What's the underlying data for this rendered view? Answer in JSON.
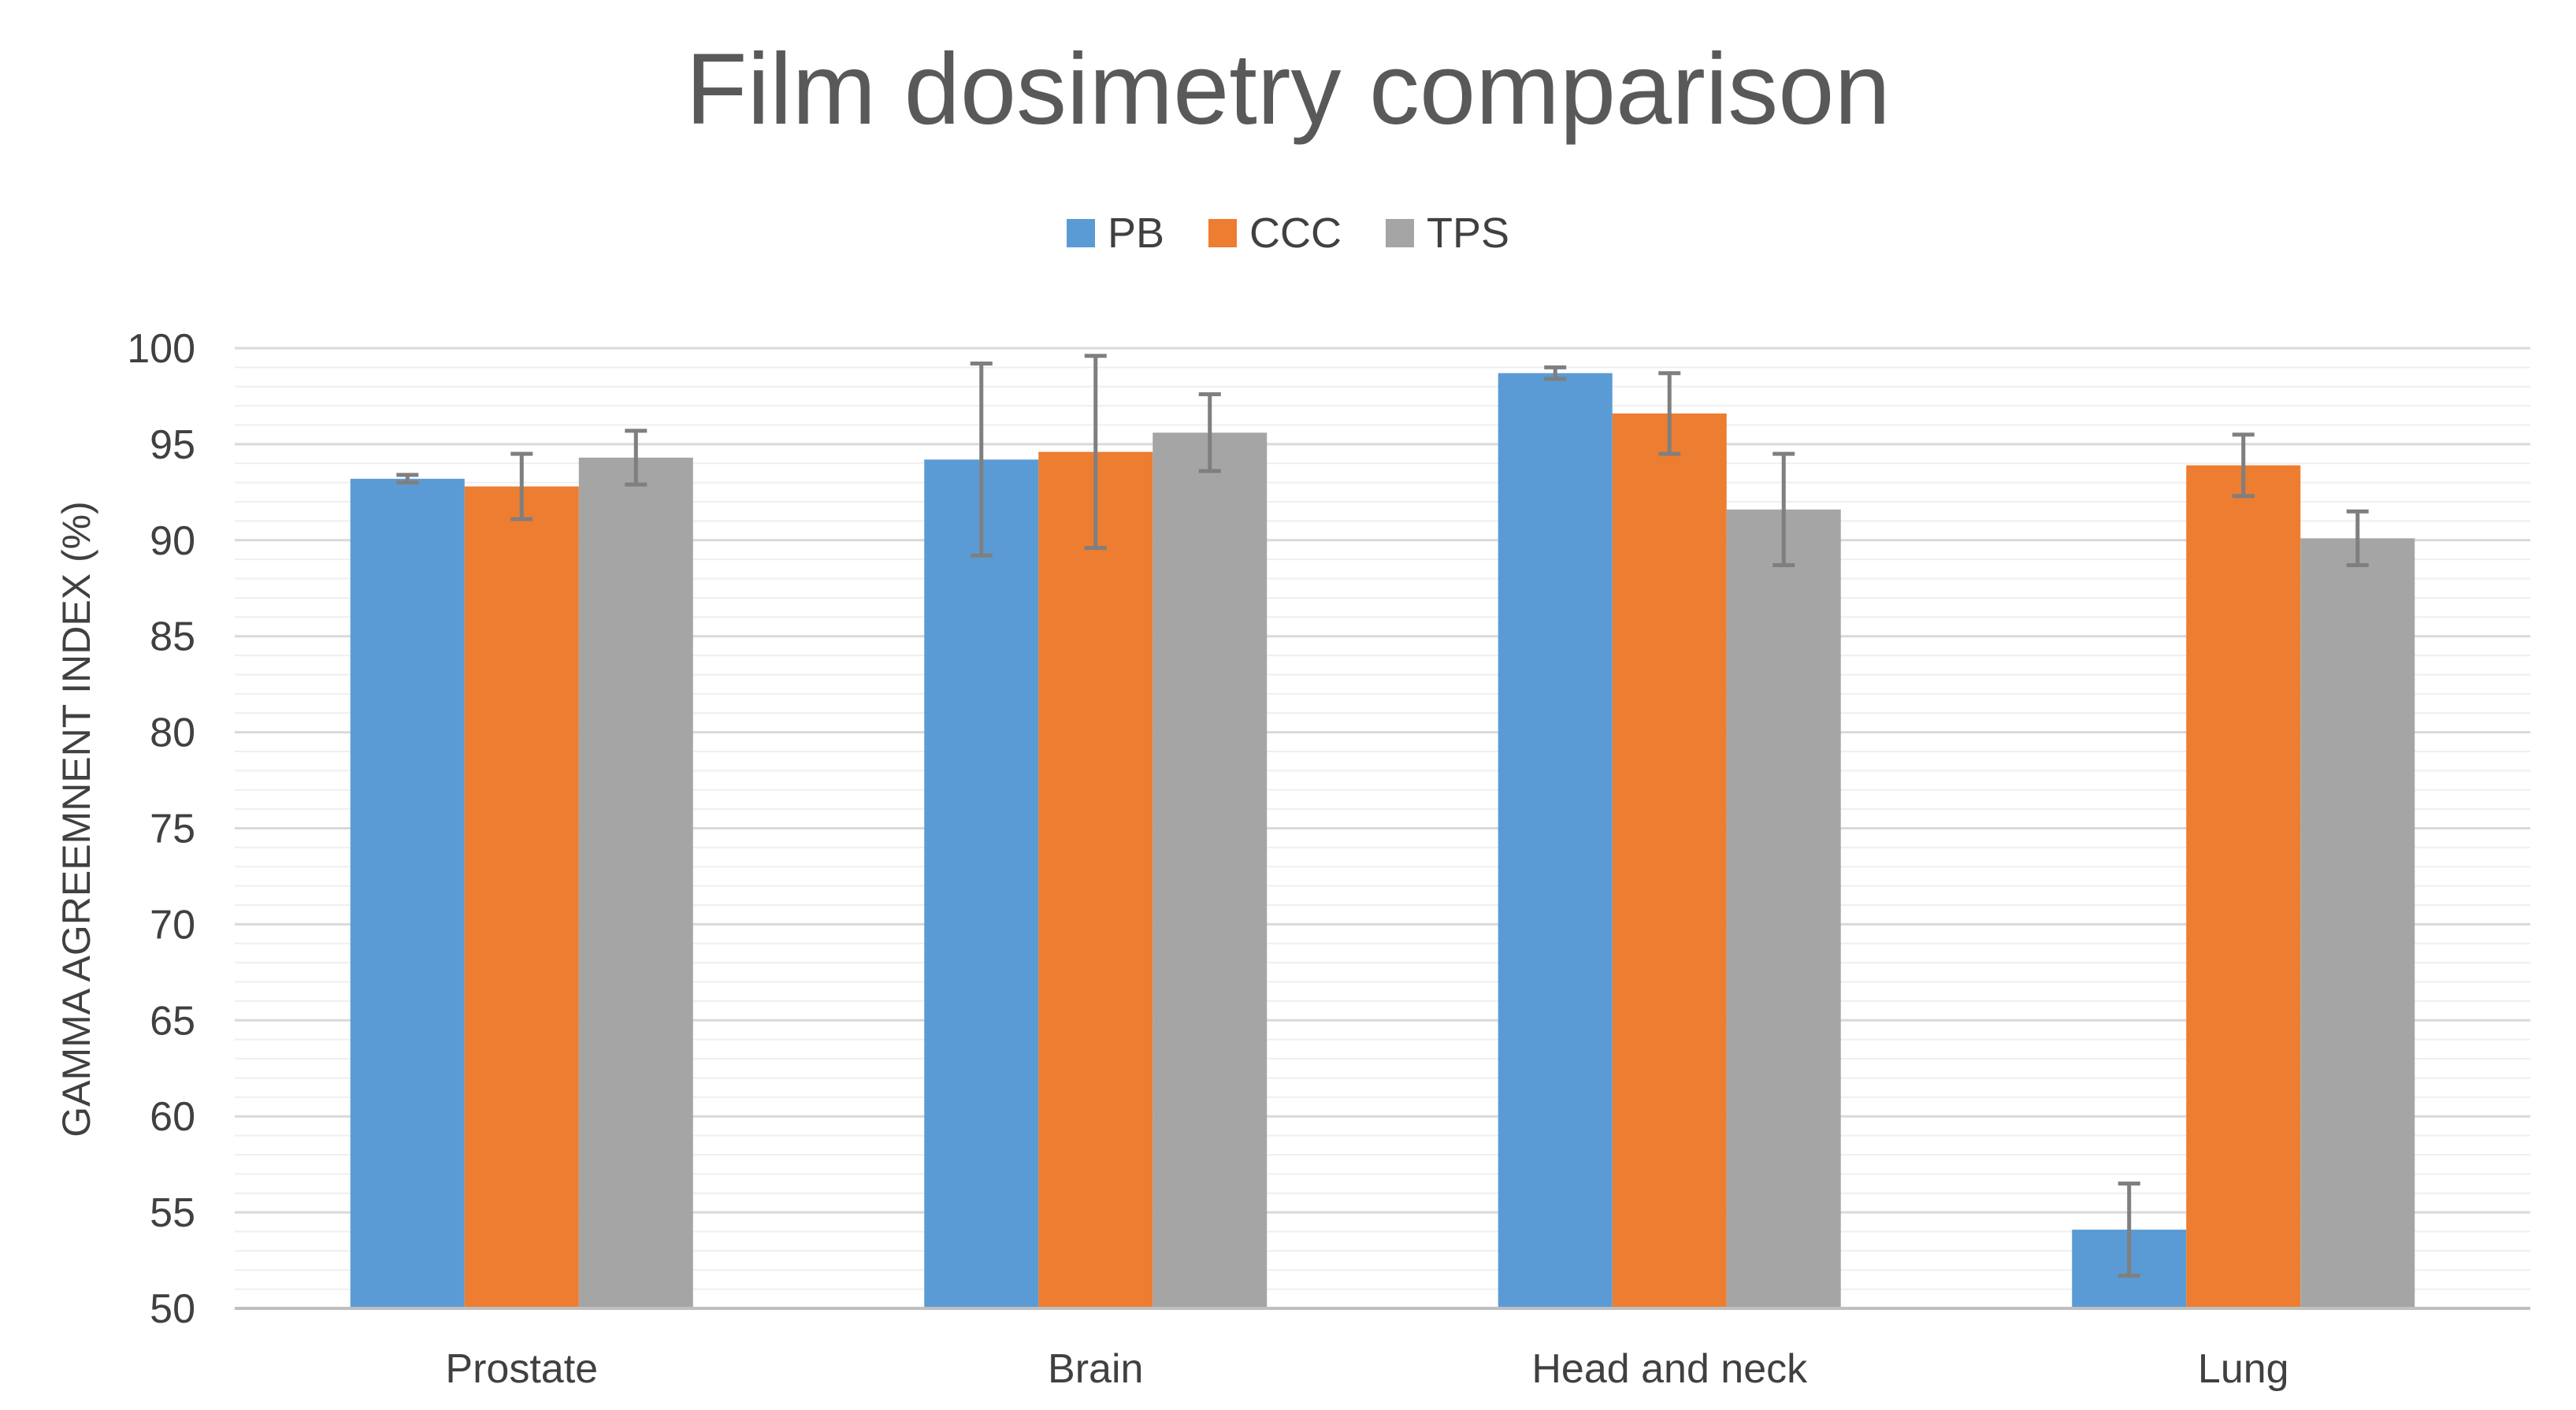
{
  "chart_data": {
    "type": "bar",
    "title": "Film dosimetry comparison",
    "xlabel": "",
    "ylabel": "GAMMA AGREEMNENT INDEX (%)",
    "ylim": [
      50,
      100
    ],
    "yticks": [
      50,
      55,
      60,
      65,
      70,
      75,
      80,
      85,
      90,
      95,
      100
    ],
    "legend_position": "top-center",
    "categories": [
      "Prostate",
      "Brain",
      "Head and neck",
      "Lung"
    ],
    "series": [
      {
        "name": "PB",
        "color": "#5B9BD5",
        "values": [
          93.2,
          94.2,
          98.7,
          54.1
        ],
        "errors": [
          0.2,
          5.0,
          0.3,
          2.4
        ]
      },
      {
        "name": "CCC",
        "color": "#ED7D31",
        "values": [
          92.8,
          94.6,
          96.6,
          93.9
        ],
        "errors": [
          1.7,
          5.0,
          2.1,
          1.6
        ]
      },
      {
        "name": "TPS",
        "color": "#A5A5A5",
        "values": [
          94.3,
          95.6,
          91.6,
          90.1
        ],
        "errors": [
          1.4,
          2.0,
          2.9,
          1.4
        ]
      }
    ]
  }
}
